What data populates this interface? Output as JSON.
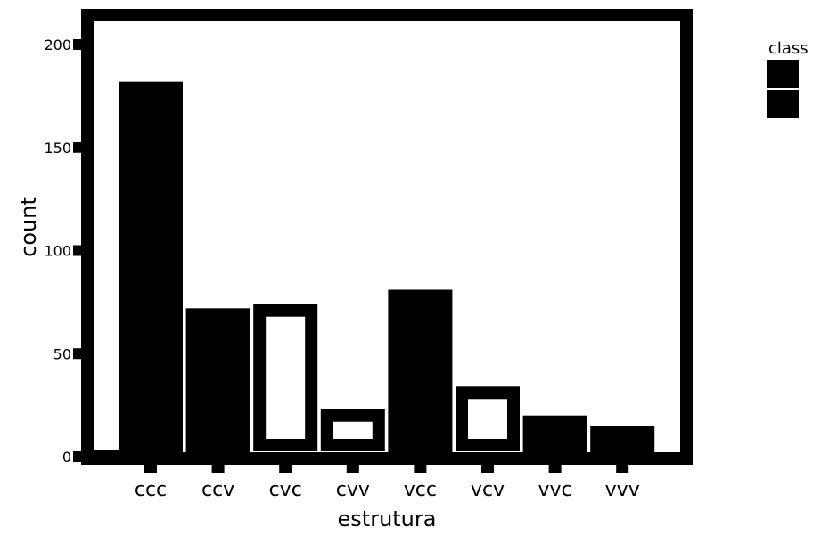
{
  "chart_data": {
    "type": "bar",
    "categories": [
      "ccc",
      "ccv",
      "cvc",
      "cvv",
      "vcc",
      "vcv",
      "vvc",
      "vvv"
    ],
    "series": [
      {
        "name": "",
        "values": [
          182,
          72,
          74,
          23,
          81,
          34,
          20,
          15
        ],
        "style": "filled"
      }
    ],
    "outline_bars": [
      false,
      false,
      true,
      true,
      false,
      true,
      false,
      false
    ],
    "ylim": [
      0,
      200
    ],
    "yticks": [
      0,
      50,
      100,
      150,
      200
    ],
    "xlabel": "estrutura",
    "ylabel": "count",
    "legend": {
      "title": "class",
      "placement": "right"
    },
    "grid": false,
    "colors": {
      "bar": "#000000",
      "frame": "#000000",
      "background": "#ffffff"
    }
  }
}
